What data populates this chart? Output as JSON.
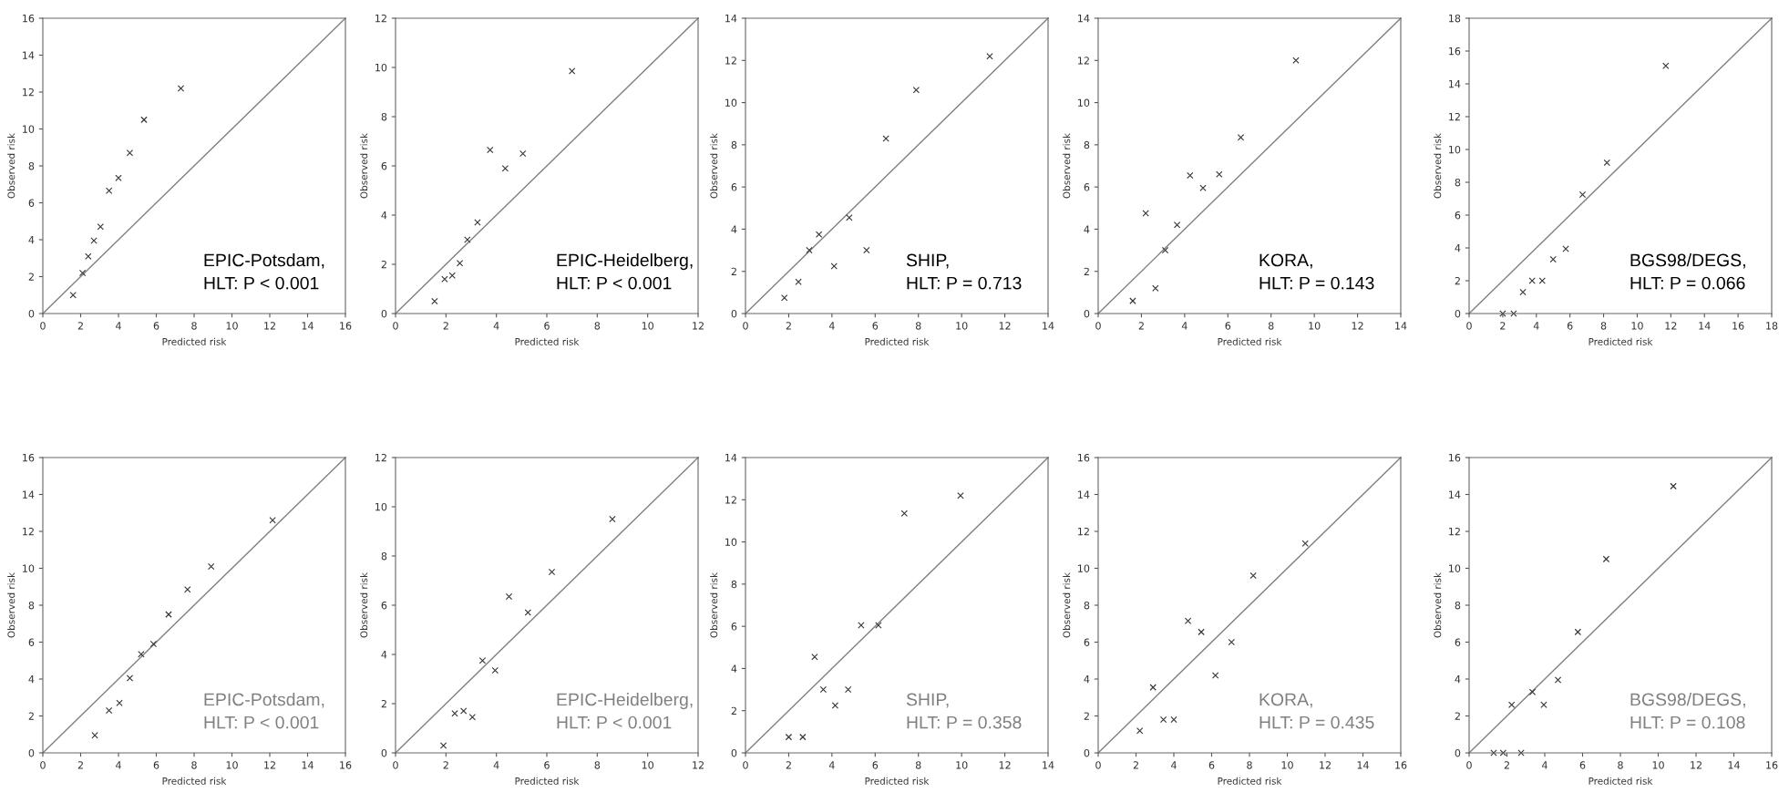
{
  "chart_data": [
    {
      "type": "scatter",
      "xlabel": "Predicted risk",
      "ylabel": "Observed risk",
      "annotations": [
        "EPIC-Potsdam,\nHLT: P < 0.001"
      ],
      "xlim": [
        0,
        16
      ],
      "ylim": [
        0,
        16
      ],
      "xticks": [
        0,
        2,
        4,
        6,
        8,
        10,
        12,
        14,
        16
      ],
      "yticks": [
        0,
        2,
        4,
        6,
        8,
        10,
        12,
        14,
        16
      ],
      "grid": false,
      "marker": "cross",
      "series": [
        {
          "type": "line",
          "color": "#808080",
          "x": [
            0,
            16
          ],
          "values": [
            0,
            16
          ],
          "marker": "none"
        },
        {
          "color": "#333333",
          "x": [
            1.6,
            2.1,
            2.4,
            2.7,
            3.05,
            3.5,
            4.0,
            4.6,
            5.35,
            7.3
          ],
          "values": [
            1.0,
            2.2,
            3.1,
            3.95,
            4.7,
            6.65,
            7.35,
            8.7,
            10.5,
            12.2
          ]
        }
      ]
    },
    {
      "type": "scatter",
      "xlabel": "Predicted risk",
      "ylabel": "Observed risk",
      "annotations": [
        "EPIC-Heidelberg,\nHLT: P < 0.001"
      ],
      "xlim": [
        0,
        12
      ],
      "ylim": [
        0,
        12
      ],
      "xticks": [
        0,
        2,
        4,
        6,
        8,
        10,
        12
      ],
      "yticks": [
        0,
        2,
        4,
        6,
        8,
        10,
        12
      ],
      "grid": false,
      "marker": "cross",
      "series": [
        {
          "type": "line",
          "color": "#808080",
          "x": [
            0,
            12
          ],
          "values": [
            0,
            12
          ],
          "marker": "none"
        },
        {
          "color": "#333333",
          "x": [
            1.55,
            1.95,
            2.25,
            2.55,
            2.85,
            3.25,
            3.75,
            4.35,
            5.05,
            7.0
          ],
          "values": [
            0.5,
            1.4,
            1.55,
            2.05,
            3.0,
            3.7,
            6.65,
            5.9,
            6.5,
            9.85
          ]
        }
      ]
    },
    {
      "type": "scatter",
      "xlabel": "Predicted risk",
      "ylabel": "Observed risk",
      "annotations": [
        "SHIP,\nHLT: P = 0.713"
      ],
      "xlim": [
        0,
        14
      ],
      "ylim": [
        0,
        14
      ],
      "xticks": [
        0,
        2,
        4,
        6,
        8,
        10,
        12,
        14
      ],
      "yticks": [
        0,
        2,
        4,
        6,
        8,
        10,
        12,
        14
      ],
      "grid": false,
      "marker": "cross",
      "series": [
        {
          "type": "line",
          "color": "#808080",
          "x": [
            0,
            14
          ],
          "values": [
            0,
            14
          ],
          "marker": "none"
        },
        {
          "color": "#333333",
          "x": [
            1.8,
            2.45,
            2.95,
            3.4,
            4.1,
            4.8,
            5.6,
            6.5,
            7.9,
            11.3
          ],
          "values": [
            0.75,
            1.5,
            3.0,
            3.75,
            2.25,
            4.55,
            3.0,
            8.3,
            10.6,
            12.2
          ]
        }
      ]
    },
    {
      "type": "scatter",
      "xlabel": "Predicted risk",
      "ylabel": "Observed risk",
      "annotations": [
        "KORA,\nHLT: P = 0.143"
      ],
      "xlim": [
        0,
        14
      ],
      "ylim": [
        0,
        14
      ],
      "xticks": [
        0,
        2,
        4,
        6,
        8,
        10,
        12,
        14
      ],
      "yticks": [
        0,
        2,
        4,
        6,
        8,
        10,
        12,
        14
      ],
      "grid": false,
      "marker": "cross",
      "series": [
        {
          "type": "line",
          "color": "#808080",
          "x": [
            0,
            14
          ],
          "values": [
            0,
            14
          ],
          "marker": "none"
        },
        {
          "color": "#333333",
          "x": [
            1.6,
            2.2,
            2.65,
            3.1,
            3.65,
            4.25,
            4.85,
            5.6,
            6.6,
            9.15
          ],
          "values": [
            0.6,
            4.75,
            1.2,
            3.0,
            4.2,
            6.55,
            5.95,
            6.6,
            8.35,
            12.0
          ]
        }
      ]
    },
    {
      "type": "scatter",
      "xlabel": "Predicted risk",
      "ylabel": "Observed risk",
      "annotations": [
        "BGS98/DEGS,\nHLT: P = 0.066"
      ],
      "xlim": [
        0,
        18
      ],
      "ylim": [
        0,
        18
      ],
      "xticks": [
        0,
        2,
        4,
        6,
        8,
        10,
        12,
        14,
        16,
        18
      ],
      "yticks": [
        0,
        2,
        4,
        6,
        8,
        10,
        12,
        14,
        16,
        18
      ],
      "grid": false,
      "marker": "cross",
      "series": [
        {
          "type": "line",
          "color": "#808080",
          "x": [
            0,
            18
          ],
          "values": [
            0,
            18
          ],
          "marker": "none"
        },
        {
          "color": "#333333",
          "x": [
            2.0,
            2.65,
            3.2,
            3.75,
            4.35,
            5.0,
            5.75,
            6.75,
            8.2,
            11.7
          ],
          "values": [
            0,
            0,
            1.3,
            2.0,
            2.0,
            3.3,
            3.95,
            7.25,
            9.2,
            15.1
          ]
        }
      ]
    },
    {
      "type": "scatter",
      "xlabel": "Predicted risk",
      "ylabel": "Observed risk",
      "annotations": [
        "EPIC-Potsdam,\nHLT: P < 0.001"
      ],
      "xlim": [
        0,
        16
      ],
      "ylim": [
        0,
        16
      ],
      "xticks": [
        0,
        2,
        4,
        6,
        8,
        10,
        12,
        14,
        16
      ],
      "yticks": [
        0,
        2,
        4,
        6,
        8,
        10,
        12,
        14,
        16
      ],
      "grid": false,
      "marker": "cross",
      "series": [
        {
          "type": "line",
          "color": "#808080",
          "x": [
            0,
            16
          ],
          "values": [
            0,
            16
          ],
          "marker": "none"
        },
        {
          "color": "#333333",
          "x": [
            2.75,
            3.5,
            4.05,
            4.6,
            5.2,
            5.85,
            6.65,
            7.65,
            8.9,
            12.15
          ],
          "values": [
            0.95,
            2.3,
            2.7,
            4.05,
            5.35,
            5.9,
            7.5,
            8.85,
            10.1,
            12.6
          ]
        }
      ]
    },
    {
      "type": "scatter",
      "xlabel": "Predicted risk",
      "ylabel": "Observed risk",
      "annotations": [
        "EPIC-Heidelberg,\nHLT: P < 0.001"
      ],
      "xlim": [
        0,
        12
      ],
      "ylim": [
        0,
        12
      ],
      "xticks": [
        0,
        2,
        4,
        6,
        8,
        10,
        12
      ],
      "yticks": [
        0,
        2,
        4,
        6,
        8,
        10,
        12
      ],
      "grid": false,
      "marker": "cross",
      "series": [
        {
          "type": "line",
          "color": "#808080",
          "x": [
            0,
            12
          ],
          "values": [
            0,
            12
          ],
          "marker": "none"
        },
        {
          "color": "#333333",
          "x": [
            1.9,
            2.35,
            2.7,
            3.05,
            3.45,
            3.95,
            4.5,
            5.25,
            6.2,
            8.6
          ],
          "values": [
            0.3,
            1.6,
            1.7,
            1.45,
            3.75,
            3.35,
            6.35,
            5.7,
            7.35,
            9.5
          ]
        }
      ]
    },
    {
      "type": "scatter",
      "xlabel": "Predicted risk",
      "ylabel": "Observed risk",
      "annotations": [
        "SHIP,\nHLT: P = 0.358"
      ],
      "xlim": [
        0,
        14
      ],
      "ylim": [
        0,
        14
      ],
      "xticks": [
        0,
        2,
        4,
        6,
        8,
        10,
        12,
        14
      ],
      "yticks": [
        0,
        2,
        4,
        6,
        8,
        10,
        12,
        14
      ],
      "grid": false,
      "marker": "cross",
      "series": [
        {
          "type": "line",
          "color": "#808080",
          "x": [
            0,
            14
          ],
          "values": [
            0,
            14
          ],
          "marker": "none"
        },
        {
          "color": "#333333",
          "x": [
            2.0,
            2.65,
            3.2,
            3.6,
            4.15,
            4.75,
            5.35,
            6.15,
            7.35,
            9.95
          ],
          "values": [
            0.75,
            0.75,
            4.55,
            3.0,
            2.25,
            3.0,
            6.05,
            6.05,
            11.35,
            12.2
          ]
        }
      ]
    },
    {
      "type": "scatter",
      "xlabel": "Predicted risk",
      "ylabel": "Observed risk",
      "annotations": [
        "KORA,\nHLT: P = 0.435"
      ],
      "xlim": [
        0,
        16
      ],
      "ylim": [
        0,
        16
      ],
      "xticks": [
        0,
        2,
        4,
        6,
        8,
        10,
        12,
        14,
        16
      ],
      "yticks": [
        0,
        2,
        4,
        6,
        8,
        10,
        12,
        14,
        16
      ],
      "grid": false,
      "marker": "cross",
      "series": [
        {
          "type": "line",
          "color": "#808080",
          "x": [
            0,
            16
          ],
          "values": [
            0,
            16
          ],
          "marker": "none"
        },
        {
          "color": "#333333",
          "x": [
            2.2,
            2.9,
            3.45,
            4.0,
            4.75,
            5.45,
            6.2,
            7.05,
            8.2,
            10.95
          ],
          "values": [
            1.2,
            3.55,
            1.8,
            1.8,
            7.15,
            6.55,
            4.2,
            6.0,
            9.6,
            11.35
          ]
        }
      ]
    },
    {
      "type": "scatter",
      "xlabel": "Predicted risk",
      "ylabel": "Observed risk",
      "annotations": [
        "BGS98/DEGS,\nHLT: P = 0.108"
      ],
      "xlim": [
        0,
        16
      ],
      "ylim": [
        0,
        16
      ],
      "xticks": [
        0,
        2,
        4,
        6,
        8,
        10,
        12,
        14,
        16
      ],
      "yticks": [
        0,
        2,
        4,
        6,
        8,
        10,
        12,
        14,
        16
      ],
      "grid": false,
      "marker": "cross",
      "series": [
        {
          "type": "line",
          "color": "#808080",
          "x": [
            0,
            16
          ],
          "values": [
            0,
            16
          ],
          "marker": "none"
        },
        {
          "color": "#333333",
          "x": [
            1.3,
            1.8,
            2.25,
            2.75,
            3.35,
            3.95,
            4.7,
            5.75,
            7.25,
            10.8
          ],
          "values": [
            0,
            0,
            2.6,
            0,
            3.3,
            2.6,
            3.95,
            6.55,
            10.5,
            14.45
          ]
        }
      ]
    }
  ]
}
